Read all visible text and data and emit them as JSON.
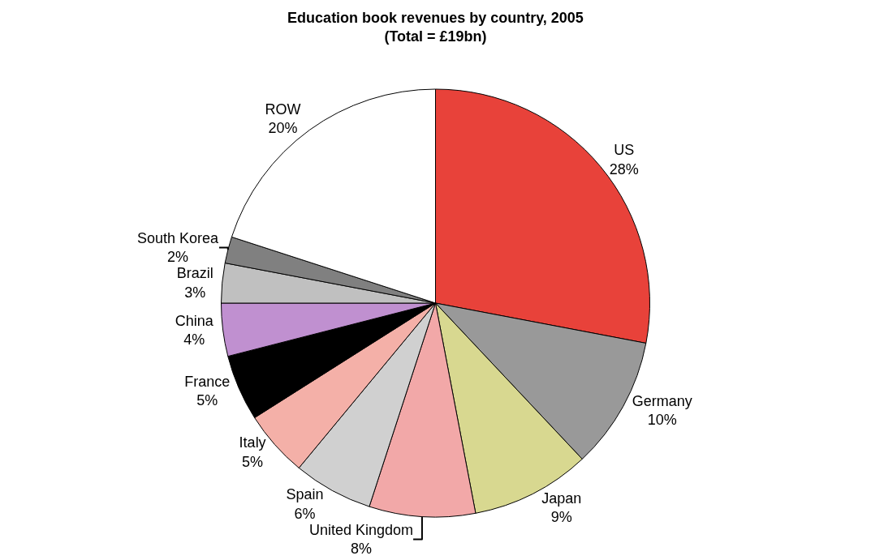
{
  "chart_data": {
    "type": "pie",
    "title": "Education book revenues by country, 2005",
    "subtitle": "(Total = £19bn)",
    "categories": [
      "US",
      "Germany",
      "Japan",
      "United Kingdom",
      "Spain",
      "Italy",
      "France",
      "China",
      "Brazil",
      "South Korea",
      "ROW"
    ],
    "values": [
      28,
      10,
      9,
      8,
      6,
      5,
      5,
      4,
      3,
      2,
      20
    ],
    "value_labels": [
      "28%",
      "10%",
      "9%",
      "8%",
      "6%",
      "5%",
      "5%",
      "4%",
      "3%",
      "2%",
      "20%"
    ],
    "colors": [
      "#e8423a",
      "#999999",
      "#d8d890",
      "#f2a8a8",
      "#d0d0d0",
      "#f4b0a8",
      "#000000",
      "#c090d0",
      "#c0c0c0",
      "#808080",
      "#ffffff"
    ],
    "legend": false
  }
}
